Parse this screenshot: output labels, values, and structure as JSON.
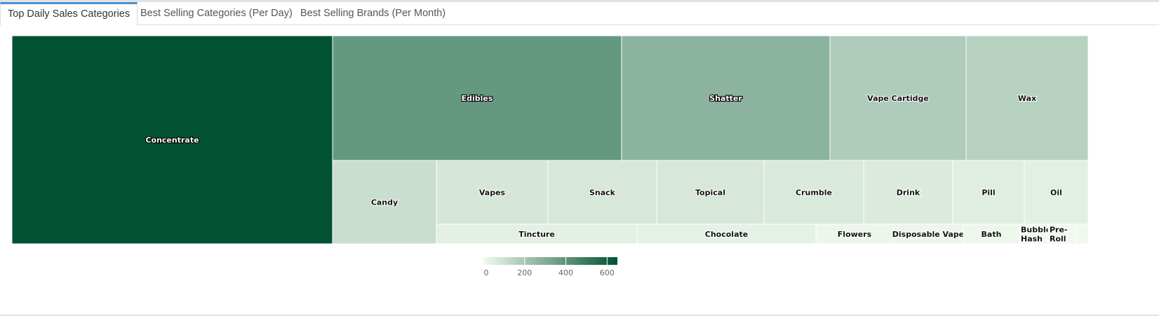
{
  "tabs": [
    {
      "label": "Top Daily Sales Categories",
      "active": true
    },
    {
      "label": "Best Selling Categories (Per Day)",
      "active": false
    },
    {
      "label": "Best Selling Brands (Per Month)",
      "active": false
    }
  ],
  "chart_data": {
    "type": "treemap",
    "title": "",
    "color_scale": {
      "min_color": "#f2faef",
      "max_color": "#005232",
      "min": 0,
      "max": 650
    },
    "legend": {
      "position": "bottom-center",
      "ticks": [
        0,
        200,
        400,
        600
      ]
    },
    "items": [
      {
        "name": "Concentrate",
        "value": 650
      },
      {
        "name": "Edibles",
        "value": 380
      },
      {
        "name": "Shatter",
        "value": 275
      },
      {
        "name": "Vape Cartidge",
        "value": 180
      },
      {
        "name": "Wax",
        "value": 160
      },
      {
        "name": "Candy",
        "value": 110
      },
      {
        "name": "Vapes",
        "value": 75
      },
      {
        "name": "Snack",
        "value": 73
      },
      {
        "name": "Topical",
        "value": 72
      },
      {
        "name": "Crumble",
        "value": 66
      },
      {
        "name": "Drink",
        "value": 60
      },
      {
        "name": "Pill",
        "value": 48
      },
      {
        "name": "Oil",
        "value": 42
      },
      {
        "name": "Tincture",
        "value": 40
      },
      {
        "name": "Chocolate",
        "value": 36
      },
      {
        "name": "Flowers",
        "value": 16
      },
      {
        "name": "Disposable Vape",
        "value": 14
      },
      {
        "name": "Bath",
        "value": 11
      },
      {
        "name": "Bubble Hash",
        "value": 5
      },
      {
        "name": "Pre-Roll",
        "value": 5
      },
      {
        "name": "",
        "value": 2
      }
    ]
  }
}
